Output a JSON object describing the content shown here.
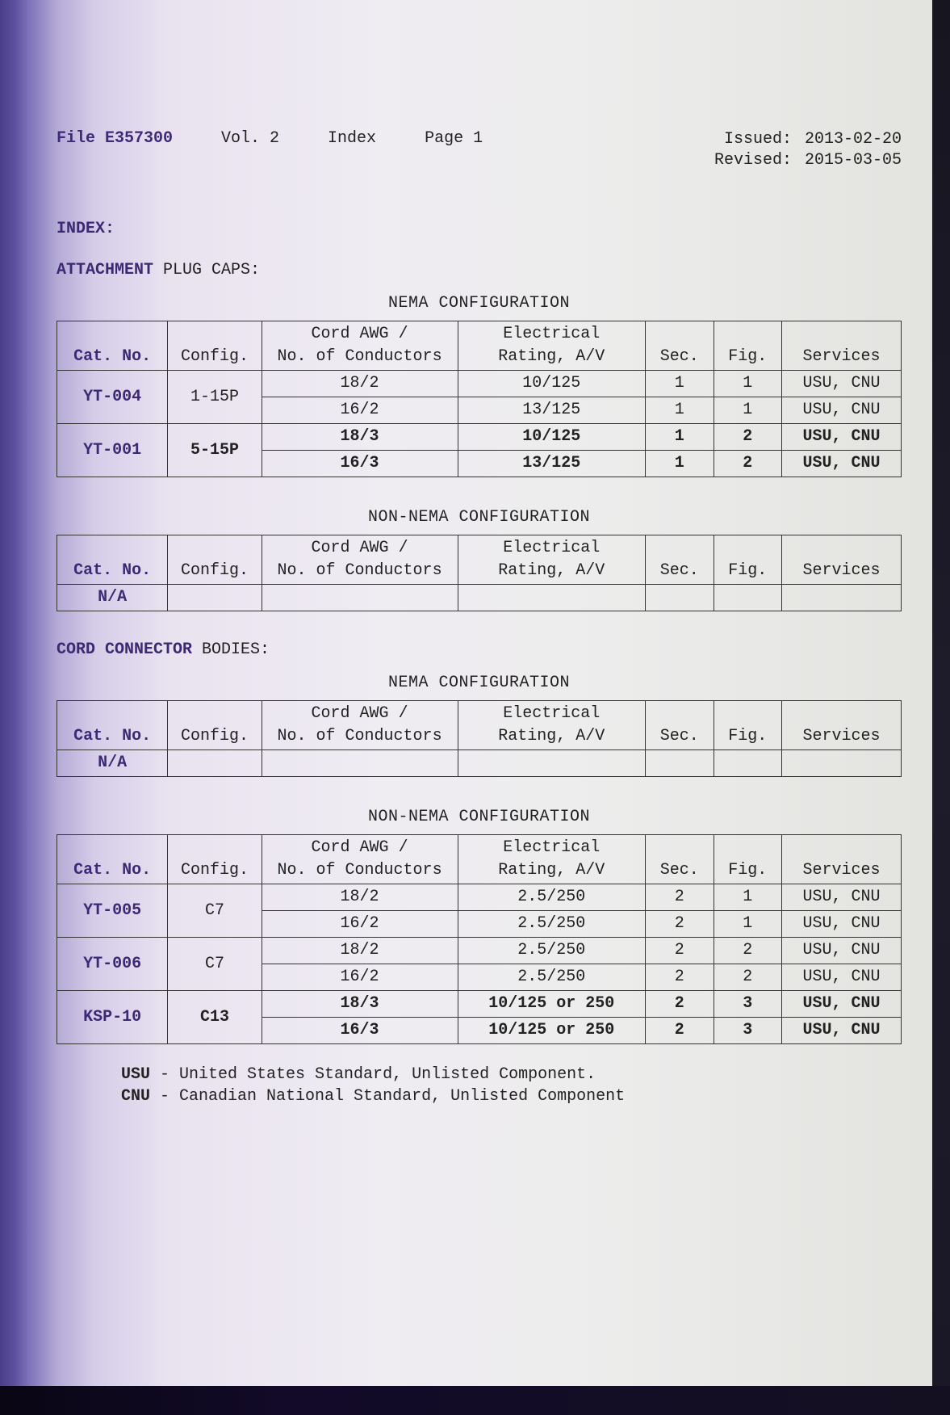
{
  "header": {
    "file": "File E357300",
    "vol": "Vol. 2",
    "index": "Index",
    "page": "Page 1",
    "issued_label": "Issued:",
    "issued_date": "2013-02-20",
    "revised_label": "Revised:",
    "revised_date": "2015-03-05"
  },
  "labels": {
    "index": "INDEX:",
    "attachment_prefix": "ATTACHMENT",
    "attachment_rest": " PLUG CAPS:",
    "cord_prefix": "CORD CONNECTOR",
    "cord_rest": " BODIES:",
    "nema_config": "NEMA CONFIGURATION",
    "non_nema_config": "NON-NEMA CONFIGURATION"
  },
  "columns": {
    "cat_no": "Cat. No.",
    "config": "Config.",
    "awg1": "Cord AWG /",
    "awg2": "No. of Conductors",
    "elec1": "Electrical",
    "elec2": "Rating, A/V",
    "sec": "Sec.",
    "fig": "Fig.",
    "svc": "Services"
  },
  "tables": {
    "plug_nema": [
      {
        "cat": "YT-004",
        "config": "1-15P",
        "awg": "18/2",
        "elec": "10/125",
        "sec": "1",
        "fig": "1",
        "svc": "USU, CNU",
        "bold": false,
        "firstOfGroup": true
      },
      {
        "cat": "",
        "config": "",
        "awg": "16/2",
        "elec": "13/125",
        "sec": "1",
        "fig": "1",
        "svc": "USU, CNU",
        "bold": false,
        "firstOfGroup": false
      },
      {
        "cat": "YT-001",
        "config": "5-15P",
        "awg": "18/3",
        "elec": "10/125",
        "sec": "1",
        "fig": "2",
        "svc": "USU, CNU",
        "bold": true,
        "firstOfGroup": true
      },
      {
        "cat": "",
        "config": "",
        "awg": "16/3",
        "elec": "13/125",
        "sec": "1",
        "fig": "2",
        "svc": "USU, CNU",
        "bold": true,
        "firstOfGroup": false
      }
    ],
    "plug_nonnema": [
      {
        "cat": "N/A",
        "config": "",
        "awg": "",
        "elec": "",
        "sec": "",
        "fig": "",
        "svc": ""
      }
    ],
    "cord_nema": [
      {
        "cat": "N/A",
        "config": "",
        "awg": "",
        "elec": "",
        "sec": "",
        "fig": "",
        "svc": ""
      }
    ],
    "cord_nonnema": [
      {
        "cat": "YT-005",
        "config": "C7",
        "awg": "18/2",
        "elec": "2.5/250",
        "sec": "2",
        "fig": "1",
        "svc": "USU, CNU",
        "bold": false,
        "firstOfGroup": true
      },
      {
        "cat": "",
        "config": "",
        "awg": "16/2",
        "elec": "2.5/250",
        "sec": "2",
        "fig": "1",
        "svc": "USU, CNU",
        "bold": false,
        "firstOfGroup": false
      },
      {
        "cat": "YT-006",
        "config": "C7",
        "awg": "18/2",
        "elec": "2.5/250",
        "sec": "2",
        "fig": "2",
        "svc": "USU, CNU",
        "bold": false,
        "firstOfGroup": true
      },
      {
        "cat": "",
        "config": "",
        "awg": "16/2",
        "elec": "2.5/250",
        "sec": "2",
        "fig": "2",
        "svc": "USU, CNU",
        "bold": false,
        "firstOfGroup": false
      },
      {
        "cat": "KSP-10",
        "config": "C13",
        "awg": "18/3",
        "elec": "10/125 or 250",
        "sec": "2",
        "fig": "3",
        "svc": "USU, CNU",
        "bold": true,
        "firstOfGroup": true
      },
      {
        "cat": "",
        "config": "",
        "awg": "16/3",
        "elec": "10/125 or 250",
        "sec": "2",
        "fig": "3",
        "svc": "USU, CNU",
        "bold": true,
        "firstOfGroup": false
      }
    ]
  },
  "footnotes": {
    "usu_key": "USU",
    "usu_text": " - United States Standard, Unlisted Component.",
    "cnu_key": "CNU",
    "cnu_text": " - Canadian National Standard, Unlisted Component"
  }
}
